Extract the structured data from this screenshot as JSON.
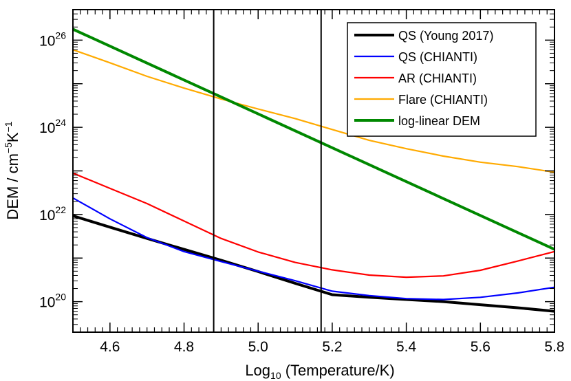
{
  "chart_data": {
    "type": "line",
    "title": "",
    "xlabel": "Log10 (Temperature/K)",
    "xlabel_parts": {
      "base": "Log",
      "sub": "10",
      "rest": " (Temperature/K)"
    },
    "ylabel": "DEM / cm^-5 K^-1",
    "ylabel_parts": {
      "prefix": "DEM / cm",
      "exp1": "−5",
      "mid": "K",
      "exp2": "−1"
    },
    "xlim": [
      4.5,
      5.8
    ],
    "ylim_log10": [
      19.3,
      26.7
    ],
    "y_scale": "log",
    "x_ticks": [
      4.6,
      4.8,
      5.0,
      5.2,
      5.4,
      5.6,
      5.8
    ],
    "x_tick_labels": [
      "4.6",
      "4.8",
      "5.0",
      "5.2",
      "5.4",
      "5.6",
      "5.8"
    ],
    "y_ticks_log10": [
      20,
      22,
      24,
      26
    ],
    "y_tick_base": "10",
    "y_tick_exponents": [
      "20",
      "22",
      "24",
      "26"
    ],
    "vertical_lines": [
      4.88,
      5.17
    ],
    "legend_position": "top-right",
    "series": [
      {
        "name": "QS (Young 2017)",
        "color": "#000000",
        "x": [
          4.5,
          4.6,
          4.7,
          4.8,
          4.9,
          5.0,
          5.1,
          5.2,
          5.3,
          5.4,
          5.5,
          5.6,
          5.7,
          5.8
        ],
        "log10_values": [
          21.97,
          21.71,
          21.45,
          21.2,
          20.95,
          20.69,
          20.42,
          20.16,
          20.1,
          20.05,
          20.0,
          19.93,
          19.86,
          19.78
        ]
      },
      {
        "name": "QS (CHIANTI)",
        "color": "#0000ff",
        "x": [
          4.5,
          4.6,
          4.7,
          4.8,
          4.9,
          5.0,
          5.1,
          5.2,
          5.3,
          5.4,
          5.5,
          5.6,
          5.7,
          5.8
        ],
        "log10_values": [
          22.38,
          21.9,
          21.47,
          21.15,
          20.92,
          20.7,
          20.48,
          20.24,
          20.14,
          20.07,
          20.05,
          20.1,
          20.2,
          20.33
        ]
      },
      {
        "name": "AR (CHIANTI)",
        "color": "#ff0000",
        "x": [
          4.5,
          4.6,
          4.7,
          4.8,
          4.9,
          5.0,
          5.1,
          5.2,
          5.3,
          5.4,
          5.5,
          5.6,
          5.7,
          5.8
        ],
        "log10_values": [
          22.95,
          22.6,
          22.25,
          21.85,
          21.45,
          21.14,
          20.9,
          20.73,
          20.61,
          20.56,
          20.59,
          20.72,
          20.93,
          21.15
        ]
      },
      {
        "name": "Flare (CHIANTI)",
        "color": "#ffaa00",
        "x": [
          4.5,
          4.6,
          4.7,
          4.8,
          4.9,
          5.0,
          5.1,
          5.2,
          5.3,
          5.4,
          5.5,
          5.6,
          5.7,
          5.8
        ],
        "log10_values": [
          25.78,
          25.48,
          25.17,
          24.9,
          24.65,
          24.42,
          24.2,
          23.95,
          23.7,
          23.51,
          23.34,
          23.2,
          23.1,
          22.97
        ]
      },
      {
        "name": "log-linear DEM",
        "color": "#008800",
        "x": [
          4.5,
          5.8
        ],
        "log10_values": [
          26.25,
          21.2
        ]
      }
    ]
  }
}
